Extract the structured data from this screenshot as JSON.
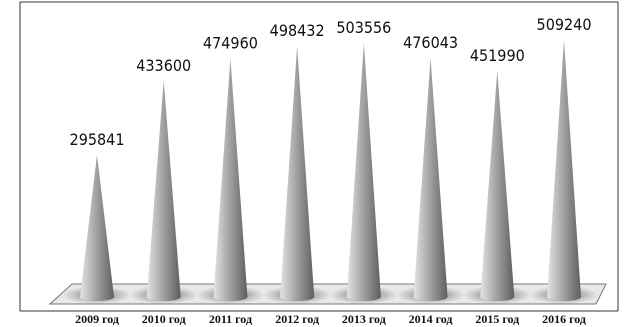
{
  "chart_data": {
    "type": "bar",
    "categories": [
      "2009 год",
      "2010 год",
      "2011 год",
      "2012 год",
      "2013 год",
      "2014 год",
      "2015 год",
      "2016 год"
    ],
    "values": [
      295841,
      433600,
      474960,
      498432,
      503556,
      476043,
      451990,
      509240
    ],
    "value_labels": [
      "295841",
      "433600",
      "474960",
      "498432",
      "503556",
      "476043",
      "451990",
      "509240"
    ],
    "title": "",
    "xlabel": "",
    "ylabel": "",
    "ylim": [
      0,
      520000
    ],
    "grid": false,
    "legend": "none",
    "bar_shape": "cone",
    "colors": {
      "cone_light": "#e4e4e4",
      "cone_mid": "#a6a6a6",
      "cone_dark": "#5e5e5e",
      "floor": "#e8e8e8",
      "floor_border": "#777777",
      "shadow": "#6a6a6a"
    }
  }
}
